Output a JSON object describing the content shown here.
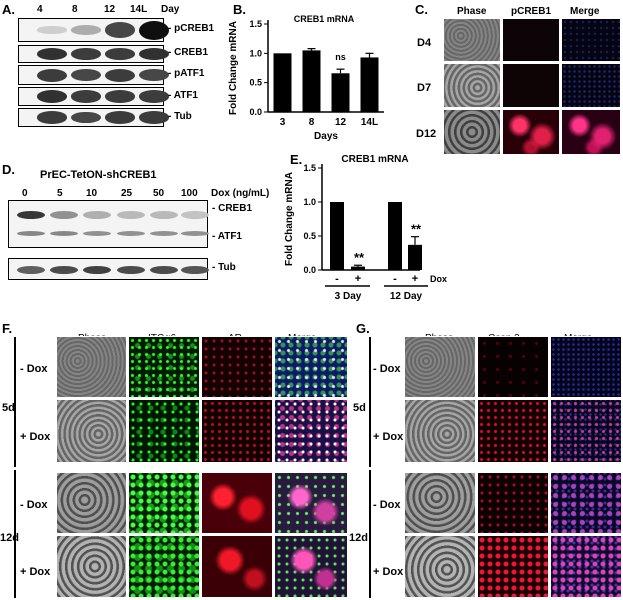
{
  "panelA": {
    "label": "A.",
    "lanes": [
      "4",
      "8",
      "12",
      "14L"
    ],
    "lane_axis": "Day",
    "blots": [
      {
        "name": "- pCREB1",
        "bands": [
          0.15,
          0.3,
          0.75,
          1.0
        ]
      },
      {
        "name": "- CREB1",
        "bands": [
          0.85,
          0.8,
          0.8,
          0.85
        ]
      },
      {
        "name": "- pATF1",
        "bands": [
          0.8,
          0.75,
          0.8,
          0.75
        ]
      },
      {
        "name": "- ATF1",
        "bands": [
          0.85,
          0.8,
          0.8,
          0.8
        ]
      },
      {
        "name": "- Tub",
        "bands": [
          0.8,
          0.75,
          0.8,
          0.8
        ]
      }
    ]
  },
  "panelB": {
    "label": "B.",
    "chart_data": {
      "type": "bar",
      "title": "CREB1 mRNA",
      "categories": [
        "3",
        "8",
        "12",
        "14L"
      ],
      "values": [
        1.0,
        1.05,
        0.66,
        0.93
      ],
      "errors": [
        0.0,
        0.03,
        0.07,
        0.07
      ],
      "annotations": [
        "",
        "",
        "ns",
        ""
      ],
      "xlabel": "Days",
      "ylabel": "Fold Change mRNA",
      "ylim": [
        0,
        1.5
      ],
      "yticks": [
        "0.0",
        "0.5",
        "1.0",
        "1.5"
      ]
    }
  },
  "panelC": {
    "label": "C.",
    "columns": [
      "Phase",
      "pCREB1",
      "Merge"
    ],
    "rows": [
      "D4",
      "D7",
      "D12"
    ]
  },
  "panelD": {
    "label": "D.",
    "title": "PrEC-TetON-shCREB1",
    "doses": [
      "0",
      "5",
      "10",
      "25",
      "50",
      "100"
    ],
    "dose_axis": "Dox (ng/mL)",
    "blots": [
      {
        "name": "- CREB1",
        "bands": [
          0.9,
          0.45,
          0.3,
          0.25,
          0.25,
          0.2
        ]
      },
      {
        "name": "- ATF1",
        "bands": [
          0.5,
          0.5,
          0.45,
          0.45,
          0.45,
          0.45
        ]
      },
      {
        "name": "- Tub",
        "bands": [
          0.7,
          0.8,
          0.85,
          0.8,
          0.8,
          0.75
        ]
      }
    ]
  },
  "panelE": {
    "label": "E.",
    "chart_data": {
      "type": "bar",
      "title": "CREB1 mRNA",
      "categories": [
        "-",
        "+",
        "-",
        "+"
      ],
      "groups": [
        "3 Day",
        "12 Day"
      ],
      "values": [
        1.0,
        0.05,
        1.0,
        0.37
      ],
      "errors": [
        0.0,
        0.02,
        0.0,
        0.12
      ],
      "annotations": [
        "",
        "**",
        "",
        "**"
      ],
      "xlabel": "Dox",
      "ylabel": "Fold Change mRNA",
      "ylim": [
        0,
        1.5
      ],
      "yticks": [
        "0.0",
        "0.5",
        "1.0",
        "1.5"
      ]
    }
  },
  "panelF": {
    "label": "F.",
    "columns": [
      "Phase",
      "ITGα6",
      "AR",
      "Merge"
    ],
    "timepoints": [
      "5d",
      "12d"
    ],
    "conditions": [
      "- Dox",
      "+ Dox"
    ]
  },
  "panelG": {
    "label": "G.",
    "columns": [
      "Phase",
      "Casp 3",
      "Merge"
    ],
    "timepoints": [
      "5d",
      "12d"
    ],
    "conditions": [
      "- Dox",
      "+ Dox"
    ]
  }
}
